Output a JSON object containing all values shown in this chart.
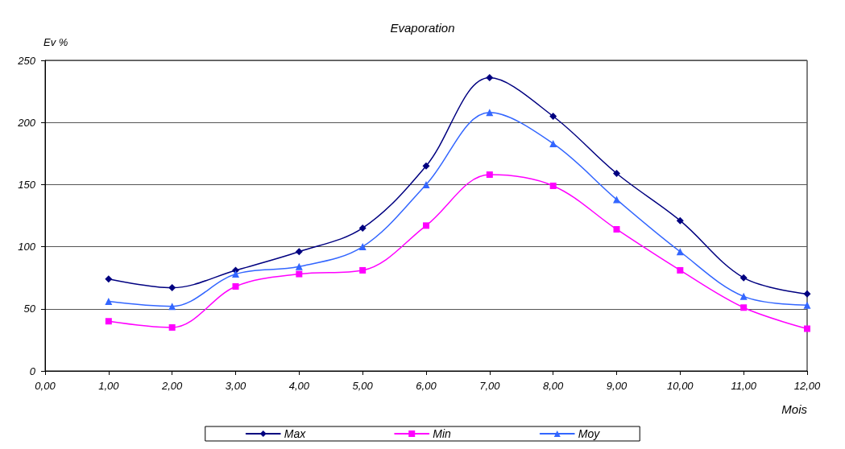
{
  "chart_data": {
    "type": "line",
    "title": "Evaporation",
    "xlabel": "Mois",
    "ylabel": "Ev %",
    "x": [
      1,
      2,
      3,
      4,
      5,
      6,
      7,
      8,
      9,
      10,
      11,
      12
    ],
    "series": [
      {
        "name": "Max",
        "color": "#000080",
        "marker": "diamond",
        "values": [
          74,
          67,
          81,
          96,
          115,
          165,
          236,
          205,
          159,
          121,
          75,
          62
        ]
      },
      {
        "name": "Min",
        "color": "#ff00ff",
        "marker": "square",
        "values": [
          40,
          35,
          68,
          78,
          81,
          117,
          158,
          149,
          114,
          81,
          51,
          34
        ]
      },
      {
        "name": "Moy",
        "color": "#3366ff",
        "marker": "triangle",
        "values": [
          56,
          52,
          78,
          84,
          100,
          150,
          208,
          183,
          138,
          96,
          60,
          53
        ]
      }
    ],
    "xlim": [
      0,
      12
    ],
    "xticks": [
      {
        "value": 0,
        "label": "0,00"
      },
      {
        "value": 1,
        "label": "1,00"
      },
      {
        "value": 2,
        "label": "2,00"
      },
      {
        "value": 3,
        "label": "3,00"
      },
      {
        "value": 4,
        "label": "4,00"
      },
      {
        "value": 5,
        "label": "5,00"
      },
      {
        "value": 6,
        "label": "6,00"
      },
      {
        "value": 7,
        "label": "7,00"
      },
      {
        "value": 8,
        "label": "8,00"
      },
      {
        "value": 9,
        "label": "9,00"
      },
      {
        "value": 10,
        "label": "10,00"
      },
      {
        "value": 11,
        "label": "11,00"
      },
      {
        "value": 12,
        "label": "12,00"
      }
    ],
    "ylim": [
      0,
      250
    ],
    "yticks": [
      0,
      50,
      100,
      150,
      200,
      250
    ],
    "grid": "y",
    "legend": "bottom",
    "line_style": "solid"
  }
}
